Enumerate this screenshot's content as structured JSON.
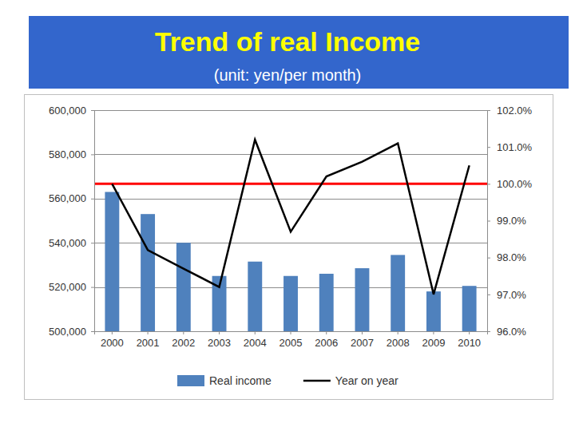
{
  "chart_data": {
    "type": "bar",
    "title": "Trend of real Income",
    "subtitle": "(unit: yen/per month)",
    "categories": [
      "2000",
      "2001",
      "2002",
      "2003",
      "2004",
      "2005",
      "2006",
      "2007",
      "2008",
      "2009",
      "2010"
    ],
    "series": [
      {
        "name": "Real income",
        "type": "bar",
        "color": "#4f81bd",
        "values": [
          563000,
          553000,
          540000,
          525000,
          531500,
          525000,
          526000,
          528500,
          534500,
          518000,
          520500
        ]
      },
      {
        "name": "Year on year",
        "type": "line",
        "color": "#000000",
        "axis": "y2",
        "values": [
          100.0,
          98.2,
          97.7,
          97.2,
          101.2,
          98.7,
          100.2,
          100.6,
          101.1,
          97.0,
          100.5
        ]
      }
    ],
    "ylim": [
      500000,
      600000
    ],
    "yticks": [
      {
        "value": 500000,
        "label": "500,000"
      },
      {
        "value": 520000,
        "label": "520,000"
      },
      {
        "value": 540000,
        "label": "540,000"
      },
      {
        "value": 560000,
        "label": "560,000"
      },
      {
        "value": 580000,
        "label": "580,000"
      },
      {
        "value": 600000,
        "label": "600,000"
      }
    ],
    "y2lim": [
      96,
      102
    ],
    "y2ticks": [
      {
        "value": 96,
        "label": "96.0%"
      },
      {
        "value": 97,
        "label": "97.0%"
      },
      {
        "value": 98,
        "label": "98.0%"
      },
      {
        "value": 99,
        "label": "99.0%"
      },
      {
        "value": 100,
        "label": "100.0%"
      },
      {
        "value": 101,
        "label": "101.0%"
      },
      {
        "value": 102,
        "label": "102.0%"
      }
    ],
    "reference_line": {
      "value": 100,
      "axis": "y2",
      "color": "#ff0000"
    },
    "grid": true,
    "legend": "bottom"
  }
}
